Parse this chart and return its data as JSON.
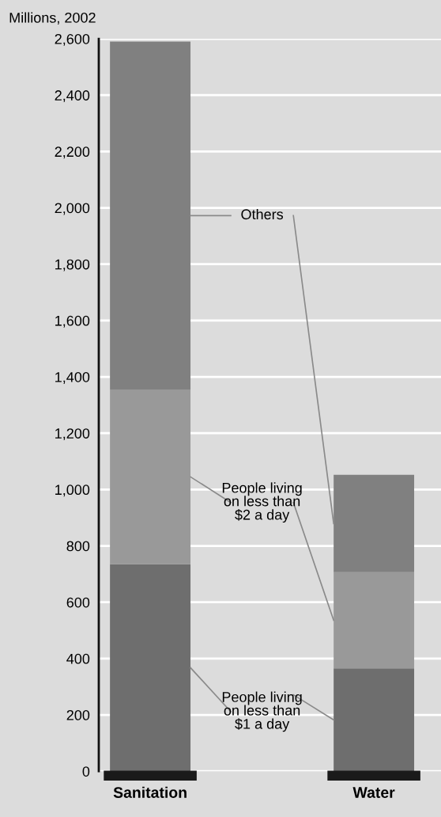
{
  "chart_data": {
    "type": "bar",
    "stacked": true,
    "ylabel": "Millions, 2002",
    "categories": [
      "Sanitation",
      "Water"
    ],
    "series": [
      {
        "name": "People living\non less than\n$1 a day",
        "color": "#6e6e6e",
        "values": [
          735,
          365
        ]
      },
      {
        "name": "People living\non less than\n$2 a day",
        "color": "#999999",
        "values": [
          620,
          342
        ]
      },
      {
        "name": "Others",
        "color": "#808080",
        "values": [
          1235,
          345
        ]
      }
    ],
    "ylim": [
      0,
      2600
    ],
    "yticks": [
      {
        "value": 0,
        "label": "0"
      },
      {
        "value": 200,
        "label": "200"
      },
      {
        "value": 400,
        "label": "400"
      },
      {
        "value": 600,
        "label": "600"
      },
      {
        "value": 800,
        "label": "800"
      },
      {
        "value": 1000,
        "label": "1,000"
      },
      {
        "value": 1200,
        "label": "1,200"
      },
      {
        "value": 1400,
        "label": "1,400"
      },
      {
        "value": 1600,
        "label": "1,600"
      },
      {
        "value": 1800,
        "label": "1,800"
      },
      {
        "value": 2000,
        "label": "2,000"
      },
      {
        "value": 2200,
        "label": "2,200"
      },
      {
        "value": 2400,
        "label": "2,400"
      },
      {
        "value": 2600,
        "label": "2,600"
      }
    ],
    "grid": "y"
  }
}
